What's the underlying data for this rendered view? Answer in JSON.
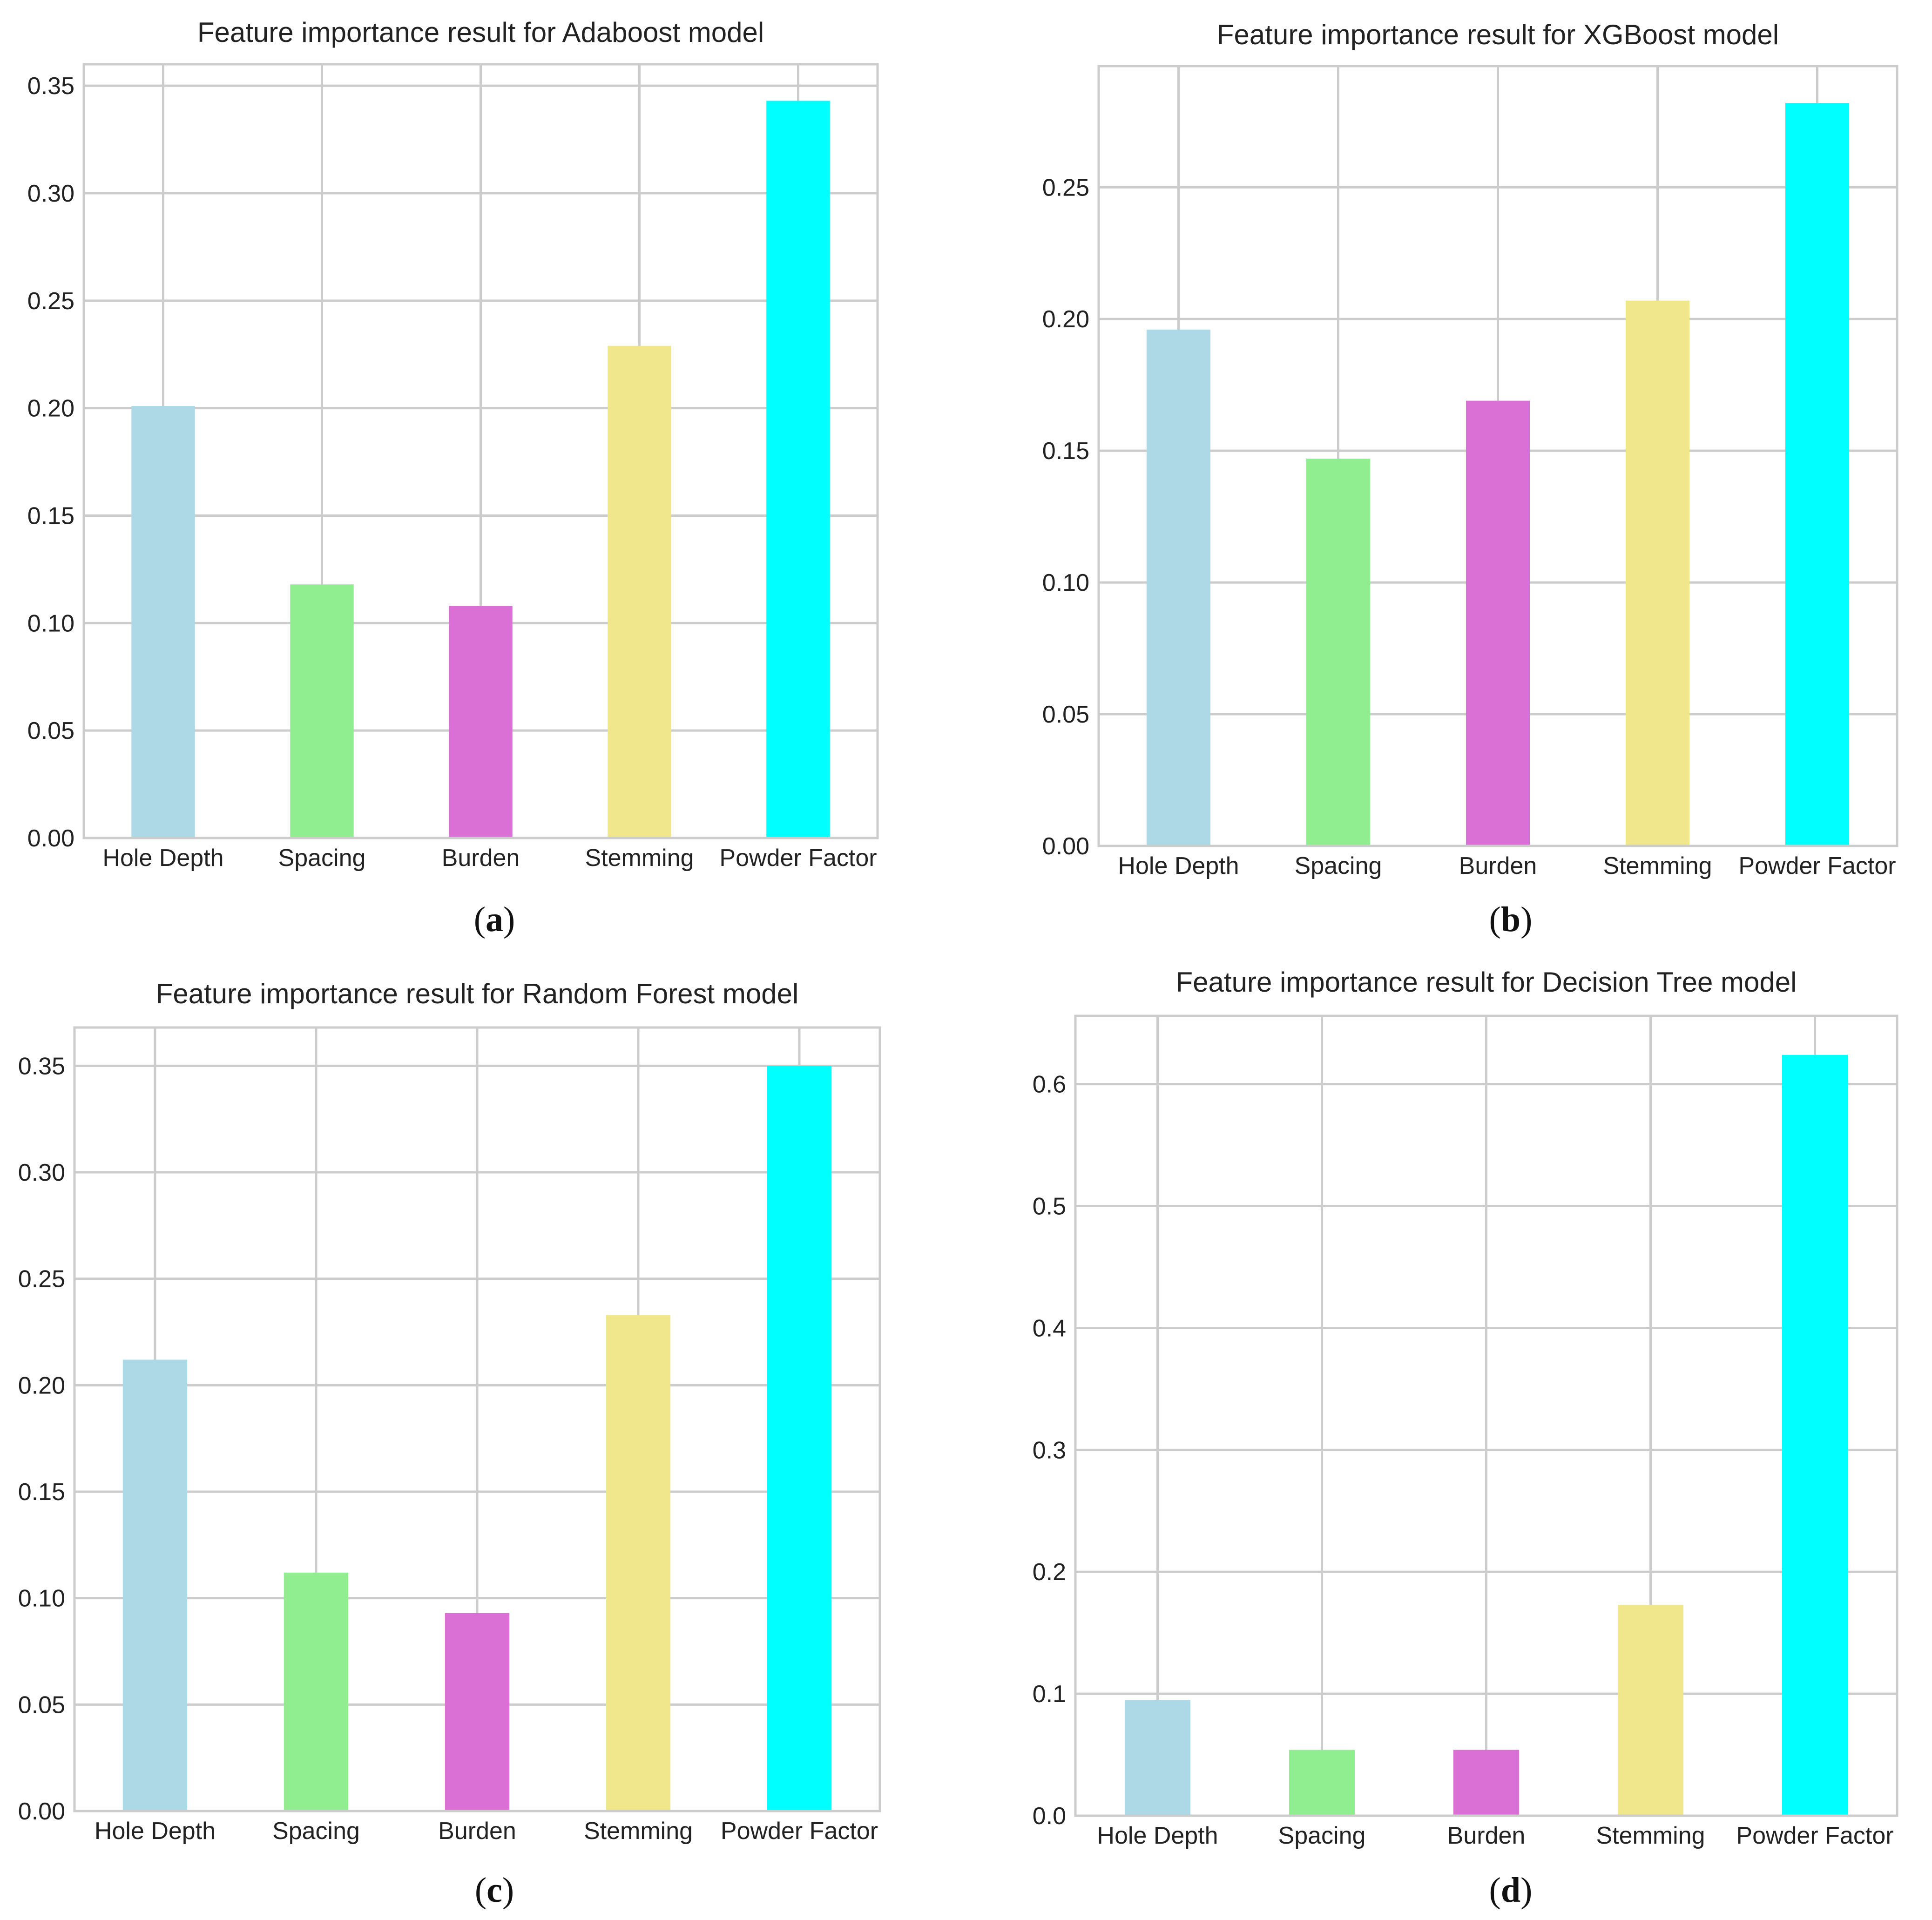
{
  "figure": {
    "panels": [
      {
        "label": "a"
      },
      {
        "label": "b"
      },
      {
        "label": "c"
      },
      {
        "label": "d"
      }
    ]
  },
  "chart_data": [
    {
      "type": "bar",
      "title": "Feature importance result for Adaboost model",
      "categories": [
        "Hole Depth",
        "Spacing",
        "Burden",
        "Stemming",
        "Powder Factor"
      ],
      "values": [
        0.201,
        0.118,
        0.108,
        0.229,
        0.343
      ],
      "colors": [
        "#add8e6",
        "#90ee90",
        "#da70d6",
        "#f0e68c",
        "#00ffff"
      ],
      "yticks": [
        "0.00",
        "0.05",
        "0.10",
        "0.15",
        "0.20",
        "0.25",
        "0.30",
        "0.35"
      ],
      "ylim": [
        0,
        0.36
      ],
      "xlabel": "",
      "ylabel": "",
      "grid": true
    },
    {
      "type": "bar",
      "title": "Feature importance result for XGBoost model",
      "categories": [
        "Hole Depth",
        "Spacing",
        "Burden",
        "Stemming",
        "Powder Factor"
      ],
      "values": [
        0.196,
        0.147,
        0.169,
        0.207,
        0.282
      ],
      "colors": [
        "#add8e6",
        "#90ee90",
        "#da70d6",
        "#f0e68c",
        "#00ffff"
      ],
      "yticks": [
        "0.00",
        "0.05",
        "0.10",
        "0.15",
        "0.20",
        "0.25"
      ],
      "ylim": [
        0,
        0.296
      ],
      "xlabel": "",
      "ylabel": "",
      "grid": true
    },
    {
      "type": "bar",
      "title": "Feature importance result for Random Forest model",
      "categories": [
        "Hole Depth",
        "Spacing",
        "Burden",
        "Stemming",
        "Powder Factor"
      ],
      "values": [
        0.212,
        0.112,
        0.093,
        0.233,
        0.35
      ],
      "colors": [
        "#add8e6",
        "#90ee90",
        "#da70d6",
        "#f0e68c",
        "#00ffff"
      ],
      "yticks": [
        "0.00",
        "0.05",
        "0.10",
        "0.15",
        "0.20",
        "0.25",
        "0.30",
        "0.35"
      ],
      "ylim": [
        0,
        0.368
      ],
      "xlabel": "",
      "ylabel": "",
      "grid": true
    },
    {
      "type": "bar",
      "title": "Feature importance result for Decision Tree model",
      "categories": [
        "Hole Depth",
        "Spacing",
        "Burden",
        "Stemming",
        "Powder Factor"
      ],
      "values": [
        0.095,
        0.054,
        0.054,
        0.173,
        0.624
      ],
      "colors": [
        "#add8e6",
        "#90ee90",
        "#da70d6",
        "#f0e68c",
        "#00ffff"
      ],
      "yticks": [
        "0.0",
        "0.1",
        "0.2",
        "0.3",
        "0.4",
        "0.5",
        "0.6"
      ],
      "ylim": [
        0,
        0.656
      ],
      "xlabel": "",
      "ylabel": "",
      "grid": true
    }
  ]
}
